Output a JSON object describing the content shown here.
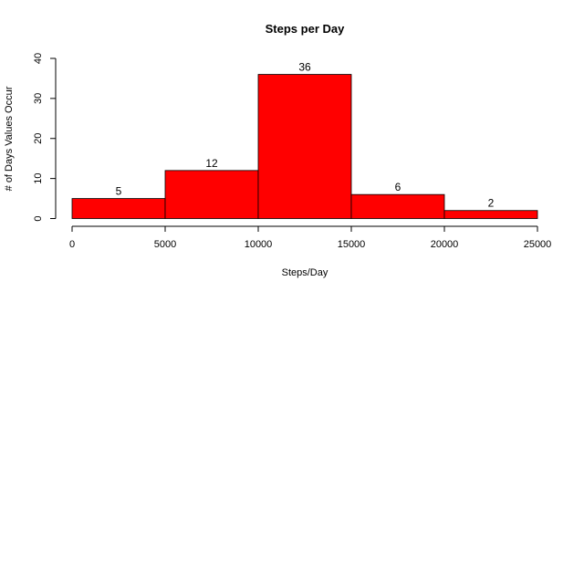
{
  "chart_data": {
    "type": "bar",
    "title": "Steps per Day",
    "xlabel": "Steps/Day",
    "ylabel": "# of Days Values Occur",
    "bins": [
      {
        "start": 0,
        "end": 5000,
        "count": 5
      },
      {
        "start": 5000,
        "end": 10000,
        "count": 12
      },
      {
        "start": 10000,
        "end": 15000,
        "count": 36
      },
      {
        "start": 15000,
        "end": 20000,
        "count": 6
      },
      {
        "start": 20000,
        "end": 25000,
        "count": 2
      }
    ],
    "xlim": [
      0,
      25000
    ],
    "ylim": [
      0,
      40
    ],
    "xticks": [
      0,
      5000,
      10000,
      15000,
      20000,
      25000
    ],
    "yticks": [
      0,
      10,
      20,
      30,
      40
    ],
    "bar_color": "#ff0000",
    "grid": false,
    "legend": "none"
  }
}
